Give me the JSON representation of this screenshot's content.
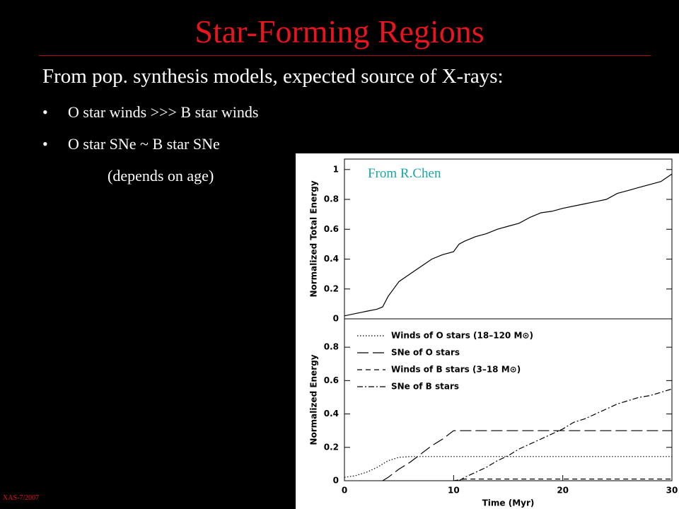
{
  "slide": {
    "title": "Star-Forming Regions",
    "subtitle": "From pop. synthesis models, expected source of X-rays:",
    "bullets": [
      "O star winds >>> B star winds",
      "O star SNe ~ B star SNe"
    ],
    "note": "(depends on age)",
    "credit": "From R.Chen",
    "footer": "XAS-7/2007"
  },
  "chart_data": [
    {
      "type": "line",
      "ylabel": "Normalized Total Energy",
      "x": [
        0,
        1,
        2,
        3,
        3.5,
        4,
        5,
        6,
        7,
        8,
        9,
        10,
        10.5,
        11,
        12,
        13,
        14,
        15,
        16,
        17,
        18,
        19,
        20,
        21,
        22,
        23,
        24,
        25,
        26,
        27,
        28,
        29,
        30
      ],
      "values": [
        0.02,
        0.035,
        0.05,
        0.065,
        0.08,
        0.15,
        0.25,
        0.3,
        0.35,
        0.4,
        0.43,
        0.45,
        0.5,
        0.52,
        0.55,
        0.57,
        0.6,
        0.62,
        0.64,
        0.68,
        0.71,
        0.72,
        0.74,
        0.755,
        0.77,
        0.785,
        0.8,
        0.84,
        0.86,
        0.88,
        0.9,
        0.92,
        0.97
      ],
      "color": "#000000",
      "xlim": [
        0,
        30
      ],
      "ylim": [
        0,
        1.07
      ],
      "yticks": [
        0,
        0.2,
        0.4,
        0.6,
        0.8,
        1
      ]
    },
    {
      "type": "line",
      "ylabel": "Normalized Energy",
      "xlabel": "Time (Myr)",
      "x": [
        0,
        1,
        2,
        3,
        3.5,
        4,
        5,
        6,
        7,
        8,
        9,
        10,
        10.5,
        11,
        12,
        13,
        14,
        15,
        16,
        17,
        18,
        19,
        20,
        21,
        22,
        23,
        24,
        25,
        26,
        27,
        28,
        29,
        30
      ],
      "series": [
        {
          "name": "Winds of O stars (18–120 M⊙)",
          "color": "#000000",
          "dash": "dotted",
          "values": [
            0.02,
            0.03,
            0.05,
            0.08,
            0.1,
            0.12,
            0.14,
            0.145,
            0.145,
            0.145,
            0.145,
            0.145,
            0.145,
            0.145,
            0.145,
            0.145,
            0.145,
            0.145,
            0.145,
            0.145,
            0.145,
            0.145,
            0.145,
            0.145,
            0.145,
            0.145,
            0.145,
            0.145,
            0.145,
            0.145,
            0.145,
            0.145,
            0.145
          ]
        },
        {
          "name": "SNe of O stars",
          "color": "#000000",
          "dash": "long",
          "values": [
            null,
            null,
            null,
            null,
            0,
            0.02,
            0.07,
            0.11,
            0.16,
            0.21,
            0.25,
            0.3,
            0.3,
            0.3,
            0.3,
            0.3,
            0.3,
            0.3,
            0.3,
            0.3,
            0.3,
            0.3,
            0.3,
            0.3,
            0.3,
            0.3,
            0.3,
            0.3,
            0.3,
            0.3,
            0.3,
            0.3,
            0.3
          ]
        },
        {
          "name": "Winds of B stars (3–18 M⊙)",
          "color": "#000000",
          "dash": "short",
          "values": [
            null,
            null,
            null,
            null,
            null,
            null,
            null,
            null,
            null,
            null,
            null,
            0,
            0.005,
            0.01,
            0.01,
            0.01,
            0.01,
            0.01,
            0.01,
            0.01,
            0.01,
            0.01,
            0.01,
            0.01,
            0.01,
            0.01,
            0.01,
            0.01,
            0.01,
            0.01,
            0.01,
            0.01,
            0.01
          ]
        },
        {
          "name": "SNe of B stars",
          "color": "#000000",
          "dash": "dashdot",
          "values": [
            null,
            null,
            null,
            null,
            null,
            null,
            null,
            null,
            null,
            null,
            null,
            null,
            0,
            0.02,
            0.05,
            0.08,
            0.12,
            0.15,
            0.19,
            0.22,
            0.25,
            0.28,
            0.31,
            0.35,
            0.37,
            0.4,
            0.43,
            0.46,
            0.48,
            0.5,
            0.51,
            0.53,
            0.55
          ]
        }
      ],
      "xlim": [
        0,
        30
      ],
      "ylim": [
        0,
        0.97
      ],
      "xticks": [
        0,
        10,
        20,
        30
      ],
      "yticks": [
        0,
        0.2,
        0.4,
        0.6,
        0.8
      ]
    }
  ]
}
